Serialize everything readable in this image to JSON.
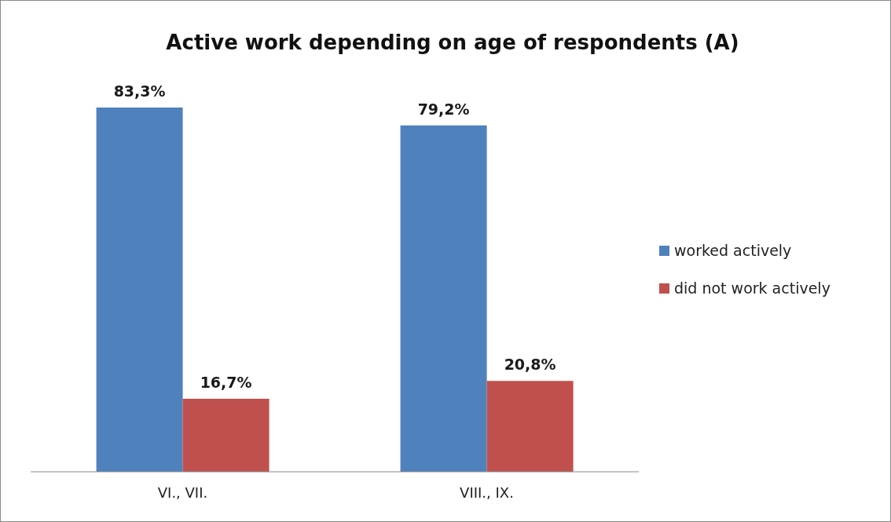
{
  "chart_data": {
    "type": "bar",
    "title": "Active work depending on age of respondents (A)",
    "categories": [
      "VI., VII.",
      "VIII., IX."
    ],
    "legend": "right",
    "series": [
      {
        "name": "worked actively",
        "color": "#4f81bd",
        "values": [
          83.3,
          79.2
        ],
        "value_labels": [
          "83,3%",
          "79,2%"
        ]
      },
      {
        "name": "did not work actively",
        "color": "#c0504d",
        "values": [
          16.7,
          20.8
        ],
        "value_labels": [
          "16,7%",
          "20,8%"
        ]
      }
    ]
  }
}
